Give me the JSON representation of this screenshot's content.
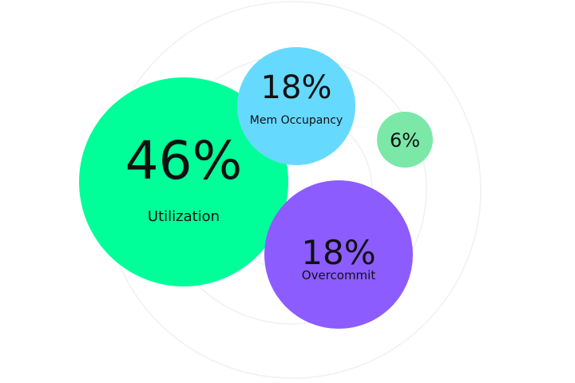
{
  "chart_data": {
    "type": "bubble",
    "title": "",
    "series": [
      {
        "label": "Utilization",
        "value": 46,
        "display": "46%",
        "color": "#00FF99"
      },
      {
        "label": "Mem Occupancy",
        "value": 18,
        "display": "18%",
        "color": "#66D9FF"
      },
      {
        "label": "",
        "value": 6,
        "display": "6%",
        "color": "#7BE8A8"
      },
      {
        "label": "Overcommit",
        "value": 18,
        "display": "18%",
        "color": "#8C5CFF"
      }
    ],
    "unit": "%",
    "grid": "concentric rings",
    "legend": "none"
  }
}
